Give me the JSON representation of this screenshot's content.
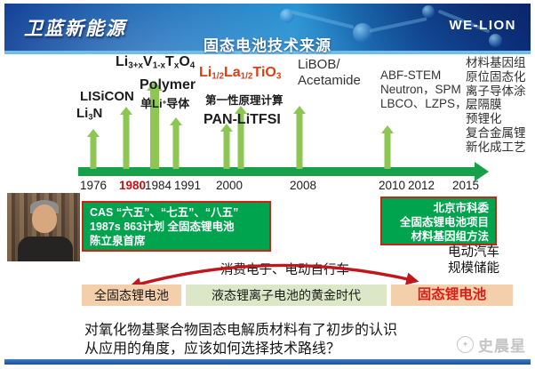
{
  "banner": {
    "logo_text": "卫蓝新能源",
    "title": "固态电池技术来源",
    "brand": "WE-LION"
  },
  "timeline": {
    "years": [
      "1976",
      "1980",
      "1984",
      "1991",
      "2000",
      "2008",
      "2010",
      "2012",
      "2015"
    ],
    "highlight_year": "1980"
  },
  "tech": {
    "li3n": [
      {
        "t": "Li"
      },
      {
        "t": "3",
        "sub": true
      },
      {
        "t": "N"
      }
    ],
    "lisicon": "LISiCON",
    "livtxo": [
      {
        "t": "Li"
      },
      {
        "t": "3+x",
        "sub": true
      },
      {
        "t": "V"
      },
      {
        "t": "1-x",
        "sub": true
      },
      {
        "t": "T"
      },
      {
        "t": "x",
        "sub": true
      },
      {
        "t": "O"
      },
      {
        "t": "4",
        "sub": true
      }
    ],
    "polymer": "Polymer",
    "polymer_note": [
      {
        "t": "单Li"
      },
      {
        "t": "+",
        "sup": true
      },
      {
        "t": "导体"
      }
    ],
    "llto": [
      {
        "t": "Li"
      },
      {
        "t": "1/2",
        "sub": true
      },
      {
        "t": "La"
      },
      {
        "t": "1/2",
        "sub": true
      },
      {
        "t": "TiO"
      },
      {
        "t": "3",
        "sub": true
      }
    ],
    "first_principles": "第一性原理计算",
    "pan_litfsi": "PAN-LiTFSI",
    "libob_lines": [
      "LiBOB/",
      "Acetamide"
    ],
    "abf_lines": [
      "ABF-STEM",
      "Neutron，SPM",
      "LBCO、LZPS，.."
    ],
    "process_list": [
      "材料基因组",
      "原位固态化",
      "离子导体涂",
      "层隔膜",
      "预锂化",
      "复合金属锂",
      "新化成工艺"
    ]
  },
  "boxes": {
    "cas_lines": [
      "CAS “六五”、“七五”、“八五”",
      "1987s 863计划 全固态锂电池",
      "陈立泉首席"
    ],
    "beijing_lines": [
      "北京市科委",
      "全固态锂电池项目",
      "材料基因组方法"
    ]
  },
  "applications": {
    "consumer": "消费电子、电动自行车",
    "ev": "电动汽车",
    "storage": "规模储能"
  },
  "bands": {
    "left": "全固态锂电池",
    "middle": "液态锂离子电池的黄金时代",
    "right": "固态锂电池"
  },
  "footer": {
    "line1": "对氧化物基聚合物固态电解质材料有了初步的认识",
    "line2": "从应用的角度，应该如何选择技术路线？",
    "watermark": "史晨星"
  },
  "colors": {
    "timeline_green": "#17a04a",
    "arrow_green": "#8dc653",
    "box_green": "#00a34e",
    "box_border_red": "#c92318",
    "highlight_red": "#e23b12",
    "band_peach": "#f4cfab",
    "band_sage": "#dbe7c6",
    "arc_red": "#c0171d"
  }
}
